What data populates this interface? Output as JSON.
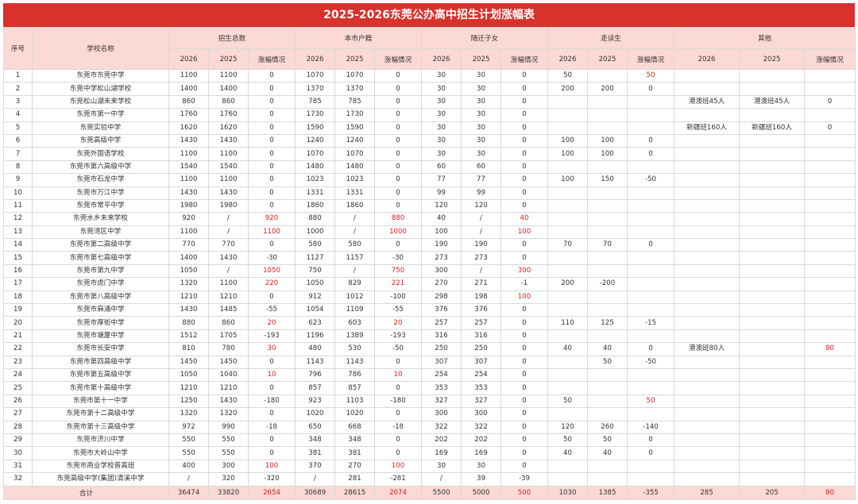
{
  "title": "2025-2026东莞公办高中招生计划涨幅表",
  "header": {
    "seq": "序号",
    "school": "学校名称",
    "groups": [
      "招生总数",
      "本市户籍",
      "随迁子女",
      "走读生",
      "其他"
    ],
    "sub": [
      "2026",
      "2025",
      "涨幅情况"
    ]
  },
  "rows": [
    [
      "1",
      "东莞市东莞中学",
      "1100",
      "1100",
      "0",
      "1070",
      "1070",
      "0",
      "30",
      "30",
      "0",
      "50",
      "",
      "50",
      "",
      "",
      ""
    ],
    [
      "2",
      "东莞中学松山湖学校",
      "1400",
      "1400",
      "0",
      "1370",
      "1370",
      "0",
      "30",
      "30",
      "0",
      "200",
      "200",
      "0",
      "",
      "",
      ""
    ],
    [
      "3",
      "东莞松山湖未来学校",
      "860",
      "860",
      "0",
      "785",
      "785",
      "0",
      "30",
      "30",
      "0",
      "",
      "",
      "",
      "港澳班45人",
      "港澳班45人",
      "0"
    ],
    [
      "4",
      "东莞市第一中学",
      "1760",
      "1760",
      "0",
      "1730",
      "1730",
      "0",
      "30",
      "30",
      "0",
      "",
      "",
      "",
      "",
      "",
      ""
    ],
    [
      "5",
      "东莞实验中学",
      "1620",
      "1620",
      "0",
      "1590",
      "1590",
      "0",
      "30",
      "30",
      "0",
      "",
      "",
      "",
      "新疆班160人",
      "新疆班160人",
      "0"
    ],
    [
      "6",
      "东莞高级中学",
      "1430",
      "1430",
      "0",
      "1240",
      "1240",
      "0",
      "30",
      "30",
      "0",
      "100",
      "100",
      "0",
      "",
      "",
      ""
    ],
    [
      "7",
      "东莞外国语学校",
      "1100",
      "1100",
      "0",
      "1070",
      "1070",
      "0",
      "30",
      "30",
      "0",
      "100",
      "100",
      "0",
      "",
      "",
      ""
    ],
    [
      "8",
      "东莞市第六高级中学",
      "1540",
      "1540",
      "0",
      "1480",
      "1480",
      "0",
      "60",
      "60",
      "0",
      "",
      "",
      "",
      "",
      "",
      ""
    ],
    [
      "9",
      "东莞市石龙中学",
      "1100",
      "1100",
      "0",
      "1023",
      "1023",
      "0",
      "77",
      "77",
      "0",
      "100",
      "150",
      "-50",
      "",
      "",
      ""
    ],
    [
      "10",
      "东莞市万江中学",
      "1430",
      "1430",
      "0",
      "1331",
      "1331",
      "0",
      "99",
      "99",
      "0",
      "",
      "",
      "",
      "",
      "",
      ""
    ],
    [
      "11",
      "东莞市常平中学",
      "1980",
      "1980",
      "0",
      "1860",
      "1860",
      "0",
      "120",
      "120",
      "0",
      "",
      "",
      "",
      "",
      "",
      ""
    ],
    [
      "12",
      "东莞水乡未来学校",
      "920",
      "/",
      "920",
      "880",
      "/",
      "880",
      "40",
      "/",
      "40",
      "",
      "",
      "",
      "",
      "",
      ""
    ],
    [
      "13",
      "东莞湾区中学",
      "1100",
      "/",
      "1100",
      "1000",
      "/",
      "1000",
      "100",
      "/",
      "100",
      "",
      "",
      "",
      "",
      "",
      ""
    ],
    [
      "14",
      "东莞市第二高级中学",
      "770",
      "770",
      "0",
      "580",
      "580",
      "0",
      "190",
      "190",
      "0",
      "70",
      "70",
      "0",
      "",
      "",
      ""
    ],
    [
      "15",
      "东莞市第七高级中学",
      "1400",
      "1430",
      "-30",
      "1127",
      "1157",
      "-30",
      "273",
      "273",
      "0",
      "",
      "",
      "",
      "",
      "",
      ""
    ],
    [
      "16",
      "东莞市第九中学",
      "1050",
      "/",
      "1050",
      "750",
      "/",
      "750",
      "300",
      "/",
      "300",
      "",
      "",
      "",
      "",
      "",
      ""
    ],
    [
      "17",
      "东莞市虎门中学",
      "1320",
      "1100",
      "220",
      "1050",
      "829",
      "221",
      "270",
      "271",
      "-1",
      "200",
      "-200",
      "",
      "",
      "",
      ""
    ],
    [
      "18",
      "东莞市第八高级中学",
      "1210",
      "1210",
      "0",
      "912",
      "1012",
      "-100",
      "298",
      "198",
      "100",
      "",
      "",
      "",
      "",
      "",
      ""
    ],
    [
      "19",
      "东莞市麻涌中学",
      "1430",
      "1485",
      "-55",
      "1054",
      "1109",
      "-55",
      "376",
      "376",
      "0",
      "",
      "",
      "",
      "",
      "",
      ""
    ],
    [
      "20",
      "东莞市厚街中学",
      "880",
      "860",
      "20",
      "623",
      "603",
      "20",
      "257",
      "257",
      "0",
      "110",
      "125",
      "-15",
      "",
      "",
      ""
    ],
    [
      "21",
      "东莞市塘厦中学",
      "1512",
      "1705",
      "-193",
      "1196",
      "1389",
      "-193",
      "316",
      "316",
      "0",
      "",
      "",
      "",
      "",
      "",
      ""
    ],
    [
      "22",
      "东莞市长安中学",
      "810",
      "780",
      "30",
      "480",
      "530",
      "-50",
      "250",
      "250",
      "0",
      "40",
      "40",
      "0",
      "港澳班80人",
      "",
      "80"
    ],
    [
      "23",
      "东莞市第四高级中学",
      "1450",
      "1450",
      "0",
      "1143",
      "1143",
      "0",
      "307",
      "307",
      "0",
      "",
      "50",
      "-50",
      "",
      "",
      ""
    ],
    [
      "24",
      "东莞市第五高级中学",
      "1050",
      "1040",
      "10",
      "796",
      "786",
      "10",
      "254",
      "254",
      "0",
      "",
      "",
      "",
      "",
      "",
      ""
    ],
    [
      "25",
      "东莞市第十高级中学",
      "1210",
      "1210",
      "0",
      "857",
      "857",
      "0",
      "353",
      "353",
      "0",
      "",
      "",
      "",
      "",
      "",
      ""
    ],
    [
      "26",
      "东莞市第十一中学",
      "1250",
      "1430",
      "-180",
      "923",
      "1103",
      "-180",
      "327",
      "327",
      "0",
      "50",
      "",
      "50",
      "",
      "",
      ""
    ],
    [
      "27",
      "东莞市第十二高级中学",
      "1320",
      "1320",
      "0",
      "1020",
      "1020",
      "0",
      "300",
      "300",
      "0",
      "",
      "",
      "",
      "",
      "",
      ""
    ],
    [
      "28",
      "东莞市第十三高级中学",
      "972",
      "990",
      "-18",
      "650",
      "668",
      "-18",
      "322",
      "322",
      "0",
      "120",
      "260",
      "-140",
      "",
      "",
      ""
    ],
    [
      "29",
      "东莞市济川中学",
      "550",
      "550",
      "0",
      "348",
      "348",
      "0",
      "202",
      "202",
      "0",
      "50",
      "50",
      "0",
      "",
      "",
      ""
    ],
    [
      "30",
      "东莞市大岭山中学",
      "550",
      "550",
      "0",
      "381",
      "381",
      "0",
      "169",
      "169",
      "0",
      "40",
      "40",
      "0",
      "",
      "",
      ""
    ],
    [
      "31",
      "东莞市商业学校普高班",
      "400",
      "300",
      "100",
      "370",
      "270",
      "100",
      "30",
      "30",
      "0",
      "",
      "",
      "",
      "",
      "",
      ""
    ],
    [
      "32",
      "东莞高级中学(集团)清溪中学",
      "/",
      "320",
      "-320",
      "/",
      "281",
      "-281",
      "/",
      "39",
      "-39",
      "",
      "",
      "",
      "",
      "",
      ""
    ]
  ],
  "total": [
    "合计",
    "36474",
    "33820",
    "2654",
    "30689",
    "28615",
    "2074",
    "5500",
    "5000",
    "500",
    "1030",
    "1385",
    "-355",
    "285",
    "205",
    "80"
  ],
  "red_cells": [
    [
      0,
      13
    ],
    [
      11,
      4
    ],
    [
      11,
      7
    ],
    [
      11,
      10
    ],
    [
      12,
      4
    ],
    [
      12,
      7
    ],
    [
      12,
      10
    ],
    [
      15,
      4
    ],
    [
      15,
      7
    ],
    [
      15,
      10
    ],
    [
      16,
      4
    ],
    [
      16,
      7
    ],
    [
      17,
      10
    ],
    [
      19,
      4
    ],
    [
      19,
      7
    ],
    [
      21,
      4
    ],
    [
      21,
      16
    ],
    [
      23,
      4
    ],
    [
      23,
      7
    ],
    [
      25,
      13
    ],
    [
      30,
      4
    ],
    [
      30,
      7
    ]
  ],
  "red_total": [
    3,
    6,
    9,
    15
  ],
  "colors": {
    "title_bg": "#d9312b",
    "header_bg": "#fbd9d5",
    "highlight": "#e02020"
  }
}
